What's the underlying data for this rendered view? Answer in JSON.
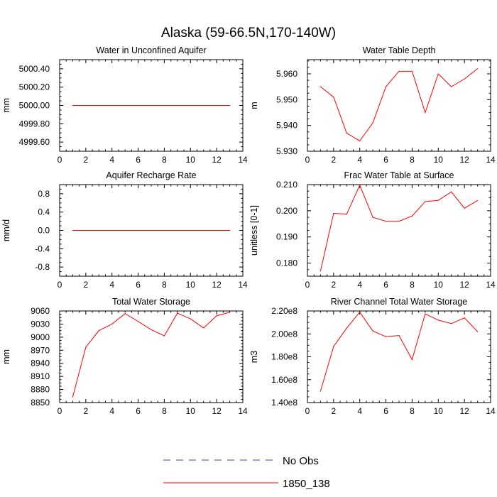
{
  "title": "Alaska (59-66.5N,170-140W)",
  "colors": {
    "series": "#ff0000",
    "obs": "#4040c0",
    "axis": "#000000"
  },
  "legend": [
    {
      "label": "No Obs",
      "style": "dashed",
      "color": "#4040c0"
    },
    {
      "label": "1850_138",
      "style": "solid",
      "color": "#ff0000"
    }
  ],
  "chart_data": [
    {
      "type": "line",
      "title": "Water in Unconfined Aquifer",
      "ylabel": "mm",
      "xlim": [
        0,
        14
      ],
      "ylim": [
        4999.5,
        5000.5
      ],
      "xticks": [
        0,
        2,
        4,
        6,
        8,
        10,
        12,
        14
      ],
      "xtick_labels": [
        "0",
        "2",
        "4",
        "6",
        "8",
        "10",
        "12",
        "14"
      ],
      "yticks": [
        4999.6,
        4999.8,
        5000.0,
        5000.2,
        5000.4
      ],
      "ytick_labels": [
        "4999.60",
        "4999.80",
        "5000.00",
        "5000.20",
        "5000.40"
      ],
      "series": [
        {
          "name": "1850_138",
          "x": [
            1,
            2,
            3,
            4,
            5,
            6,
            7,
            8,
            9,
            10,
            11,
            12,
            13
          ],
          "values": [
            5000,
            5000,
            5000,
            5000,
            5000,
            5000,
            5000,
            5000,
            5000,
            5000,
            5000,
            5000,
            5000
          ]
        }
      ]
    },
    {
      "type": "line",
      "title": "Water Table Depth",
      "ylabel": "m",
      "xlim": [
        0,
        14
      ],
      "ylim": [
        5.93,
        5.9655
      ],
      "xticks": [
        0,
        2,
        4,
        6,
        8,
        10,
        12,
        14
      ],
      "xtick_labels": [
        "0",
        "2",
        "4",
        "6",
        "8",
        "10",
        "12",
        "14"
      ],
      "yticks": [
        5.93,
        5.94,
        5.95,
        5.96
      ],
      "ytick_labels": [
        "5.930",
        "5.940",
        "5.950",
        "5.960"
      ],
      "series": [
        {
          "name": "1850_138",
          "x": [
            1,
            2,
            3,
            4,
            5,
            6,
            7,
            8,
            9,
            10,
            11,
            12,
            13
          ],
          "values": [
            5.955,
            5.951,
            5.937,
            5.934,
            5.941,
            5.955,
            5.961,
            5.961,
            5.945,
            5.96,
            5.955,
            5.958,
            5.962
          ]
        }
      ]
    },
    {
      "type": "line",
      "title": "Aquifer Recharge Rate",
      "ylabel": "mm/d",
      "xlim": [
        0,
        14
      ],
      "ylim": [
        -1.0,
        1.0
      ],
      "xticks": [
        0,
        2,
        4,
        6,
        8,
        10,
        12,
        14
      ],
      "xtick_labels": [
        "0",
        "2",
        "4",
        "6",
        "8",
        "10",
        "12",
        "14"
      ],
      "yticks": [
        -0.8,
        -0.4,
        0.0,
        0.4,
        0.8
      ],
      "ytick_labels": [
        "-0.8",
        "-0.4",
        "0.0",
        "0.4",
        "0.8"
      ],
      "series": [
        {
          "name": "1850_138",
          "x": [
            1,
            2,
            3,
            4,
            5,
            6,
            7,
            8,
            9,
            10,
            11,
            12,
            13
          ],
          "values": [
            0,
            0,
            0,
            0,
            0,
            0,
            0,
            0,
            0,
            0,
            0,
            0,
            0
          ]
        }
      ]
    },
    {
      "type": "line",
      "title": "Frac Water Table at Surface",
      "ylabel": "unitless [0-1]",
      "xlim": [
        0,
        14
      ],
      "ylim": [
        0.175,
        0.21
      ],
      "xticks": [
        0,
        2,
        4,
        6,
        8,
        10,
        12,
        14
      ],
      "xtick_labels": [
        "0",
        "2",
        "4",
        "6",
        "8",
        "10",
        "12",
        "14"
      ],
      "yticks": [
        0.18,
        0.19,
        0.2,
        0.21
      ],
      "ytick_labels": [
        "0.180",
        "0.190",
        "0.200",
        "0.210"
      ],
      "series": [
        {
          "name": "1850_138",
          "x": [
            1,
            2,
            3,
            4,
            5,
            6,
            7,
            8,
            9,
            10,
            11,
            12,
            13
          ],
          "values": [
            0.177,
            0.199,
            0.1987,
            0.2098,
            0.1975,
            0.196,
            0.196,
            0.198,
            0.2035,
            0.204,
            0.2072,
            0.201,
            0.2039
          ]
        }
      ]
    },
    {
      "type": "line",
      "title": "Total Water Storage",
      "ylabel": "mm",
      "xlim": [
        0,
        14
      ],
      "ylim": [
        8850,
        9060
      ],
      "xticks": [
        0,
        2,
        4,
        6,
        8,
        10,
        12,
        14
      ],
      "xtick_labels": [
        "0",
        "2",
        "4",
        "6",
        "8",
        "10",
        "12",
        "14"
      ],
      "yticks": [
        8850,
        8880,
        8910,
        8940,
        8970,
        9000,
        9030,
        9060
      ],
      "ytick_labels": [
        "8850",
        "8880",
        "8910",
        "8940",
        "8970",
        "9000",
        "9030",
        "9060"
      ],
      "series": [
        {
          "name": "1850_138",
          "x": [
            1,
            2,
            3,
            4,
            5,
            6,
            7,
            8,
            9,
            10,
            11,
            12,
            13
          ],
          "values": [
            8863,
            8977,
            9015,
            9030,
            9054,
            9036,
            9017,
            9003,
            9055,
            9042,
            9021,
            9049,
            9057
          ]
        }
      ]
    },
    {
      "type": "line",
      "title": "River Channel Total Water Storage",
      "ylabel": "m3",
      "xlim": [
        0,
        14
      ],
      "ylim": [
        140000000,
        220000000
      ],
      "xticks": [
        0,
        2,
        4,
        6,
        8,
        10,
        12,
        14
      ],
      "xtick_labels": [
        "0",
        "2",
        "4",
        "6",
        "8",
        "10",
        "12",
        "14"
      ],
      "yticks": [
        140000000,
        160000000,
        180000000,
        200000000,
        220000000
      ],
      "ytick_labels": [
        "1.40e8",
        "1.60e8",
        "1.80e8",
        "2.00e8",
        "2.20e8"
      ],
      "series": [
        {
          "name": "1850_138",
          "x": [
            1,
            2,
            3,
            4,
            5,
            6,
            7,
            8,
            9,
            10,
            11,
            12,
            13
          ],
          "values": [
            150000000,
            189000000,
            205000000,
            219000000,
            202500000,
            197500000,
            198500000,
            177500000,
            217500000,
            212000000,
            209000000,
            214000000,
            202000000
          ]
        }
      ]
    }
  ]
}
